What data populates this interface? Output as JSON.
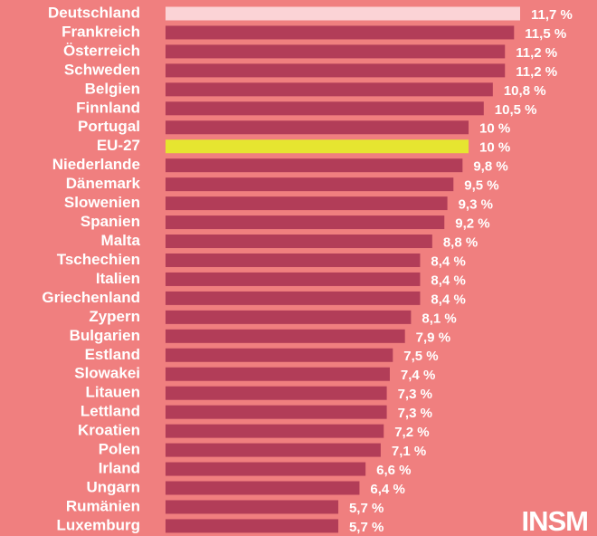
{
  "chart_data": {
    "type": "barh",
    "categories": [
      "Deutschland",
      "Frankreich",
      "Österreich",
      "Schweden",
      "Belgien",
      "Finnland",
      "Portugal",
      "EU-27",
      "Niederlande",
      "Dänemark",
      "Slowenien",
      "Spanien",
      "Malta",
      "Tschechien",
      "Italien",
      "Griechenland",
      "Zypern",
      "Bulgarien",
      "Estland",
      "Slowakei",
      "Litauen",
      "Lettland",
      "Kroatien",
      "Polen",
      "Irland",
      "Ungarn",
      "Rumänien",
      "Luxemburg"
    ],
    "values": [
      11.7,
      11.5,
      11.2,
      11.2,
      10.8,
      10.5,
      10,
      10,
      9.8,
      9.5,
      9.3,
      9.2,
      8.8,
      8.4,
      8.4,
      8.4,
      8.1,
      7.9,
      7.5,
      7.4,
      7.3,
      7.3,
      7.2,
      7.1,
      6.6,
      6.4,
      5.7,
      5.7
    ],
    "value_labels": [
      "11,7 %",
      "11,5 %",
      "11,2 %",
      "11,2 %",
      "10,8 %",
      "10,5 %",
      "10 %",
      "10 %",
      "9,8 %",
      "9,5 %",
      "9,3 %",
      "9,2 %",
      "8,8 %",
      "8,4 %",
      "8,4 %",
      "8,4 %",
      "8,1 %",
      "7,9 %",
      "7,5 %",
      "7,4 %",
      "7,3 %",
      "7,3 %",
      "7,2 %",
      "7,1 %",
      "6,6 %",
      "6,4 %",
      "5,7 %",
      "5,7 %"
    ],
    "colors": [
      "#fbd3d6",
      "#b23d58",
      "#b23d58",
      "#b23d58",
      "#b23d58",
      "#b23d58",
      "#b23d58",
      "#e6e530",
      "#b23d58",
      "#b23d58",
      "#b23d58",
      "#b23d58",
      "#b23d58",
      "#b23d58",
      "#b23d58",
      "#b23d58",
      "#b23d58",
      "#b23d58",
      "#b23d58",
      "#b23d58",
      "#b23d58",
      "#b23d58",
      "#b23d58",
      "#b23d58",
      "#b23d58",
      "#b23d58",
      "#b23d58",
      "#b23d58"
    ],
    "xlim": [
      0,
      11.7
    ],
    "brand": "INSM"
  }
}
